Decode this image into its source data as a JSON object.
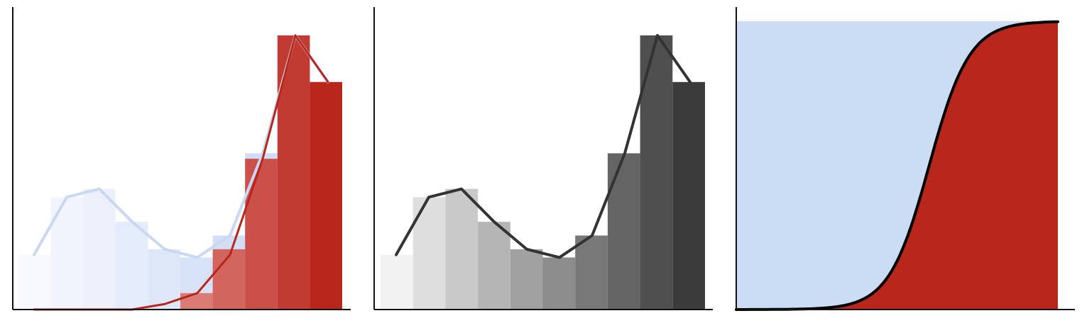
{
  "chart_data": [
    {
      "type": "bar",
      "panel": "left",
      "x": [
        0,
        1,
        2,
        3,
        4,
        5,
        6,
        7,
        8,
        9
      ],
      "values": [
        0.2,
        0.41,
        0.44,
        0.32,
        0.22,
        0.19,
        0.27,
        0.57,
        1.0,
        0.83
      ],
      "overlay_values": [
        0.0,
        0.0,
        0.0,
        0.0,
        0.0,
        0.06,
        0.22,
        0.55,
        1.0,
        0.83
      ],
      "line_values": [
        0.2,
        0.41,
        0.44,
        0.32,
        0.22,
        0.19,
        0.27,
        0.57,
        1.0,
        0.83
      ],
      "line2_values": [
        0.0,
        0.0,
        0.0,
        0.0,
        0.02,
        0.06,
        0.2,
        0.55,
        1.0,
        0.83
      ],
      "ylim": [
        0,
        1.0
      ],
      "colors": {
        "bar_light": "#cfdcf5",
        "bar_red": "#b8261c",
        "line_blue": "#c8d8f3",
        "line_red": "#b8261c"
      }
    },
    {
      "type": "bar",
      "panel": "middle",
      "x": [
        0,
        1,
        2,
        3,
        4,
        5,
        6,
        7,
        8,
        9
      ],
      "values": [
        0.2,
        0.41,
        0.44,
        0.32,
        0.22,
        0.19,
        0.27,
        0.57,
        1.0,
        0.83
      ],
      "line_values": [
        0.2,
        0.41,
        0.44,
        0.32,
        0.22,
        0.19,
        0.27,
        0.57,
        1.0,
        0.83
      ],
      "ylim": [
        0,
        1.0
      ],
      "colors": {
        "bar_start": "#f2f2f2",
        "bar_end": "#3b3b3b",
        "line": "#333333"
      }
    },
    {
      "type": "area",
      "panel": "right",
      "x_domain": [
        0,
        1
      ],
      "sigmoid": {
        "midpoint": 0.6,
        "steepness": 16
      },
      "ylim": [
        0,
        1.0
      ],
      "colors": {
        "background": "#cbdcf5",
        "fill": "#b8261c",
        "line": "#000000"
      }
    }
  ]
}
